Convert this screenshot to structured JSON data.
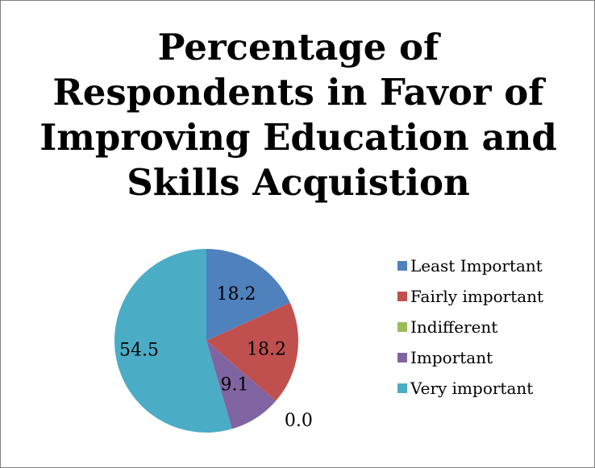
{
  "chart_data": {
    "type": "pie",
    "title": "Percentage of Respondents in Favor of Improving Education and Skills Acquistion",
    "title_lines": [
      "Percentage of",
      "Respondents in Favor of",
      "Improving Education and",
      "Skills Acquistion"
    ],
    "categories": [
      "Least Important",
      "Fairly important",
      "Indifferent",
      "Important",
      "Very important"
    ],
    "values": [
      18.2,
      18.2,
      0.0,
      9.1,
      54.5
    ],
    "data_labels": [
      "18.2",
      "18.2",
      "0.0",
      "9.1",
      "54.5"
    ],
    "colors": [
      "#4f81bd",
      "#c0504d",
      "#9bbb59",
      "#8064a2",
      "#4bacc6"
    ],
    "legend_position": "right",
    "start_angle": "12 o'clock",
    "direction": "clockwise"
  }
}
